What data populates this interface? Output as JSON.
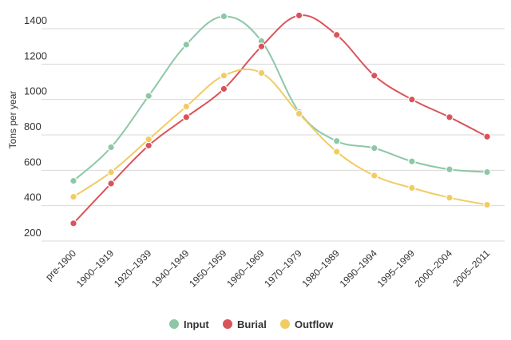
{
  "chart_data": {
    "type": "line",
    "title": "",
    "xlabel": "",
    "ylabel": "Tons per year",
    "categories": [
      "pre-1900",
      "1900–1919",
      "1920–1939",
      "1940–1949",
      "1950–1959",
      "1960–1969",
      "1970–1979",
      "1980–1989",
      "1990–1994",
      "1995–1999",
      "2000–2004",
      "2005–2011"
    ],
    "yticks": [
      "200",
      "400",
      "600",
      "800",
      "1000",
      "1200",
      "1400"
    ],
    "ylim": [
      200,
      1500
    ],
    "grid": true,
    "legend_position": "bottom-center",
    "series": [
      {
        "name": "Input",
        "color": "#8dc7a7",
        "values": [
          540,
          730,
          1020,
          1310,
          1470,
          1330,
          930,
          765,
          725,
          650,
          605,
          590
        ]
      },
      {
        "name": "Burial",
        "color": "#d9545a",
        "values": [
          300,
          525,
          740,
          900,
          1060,
          1300,
          1475,
          1365,
          1135,
          1000,
          900,
          790
        ]
      },
      {
        "name": "Outflow",
        "color": "#f0cc63",
        "values": [
          450,
          590,
          775,
          960,
          1135,
          1150,
          920,
          705,
          570,
          500,
          445,
          405
        ]
      }
    ]
  }
}
